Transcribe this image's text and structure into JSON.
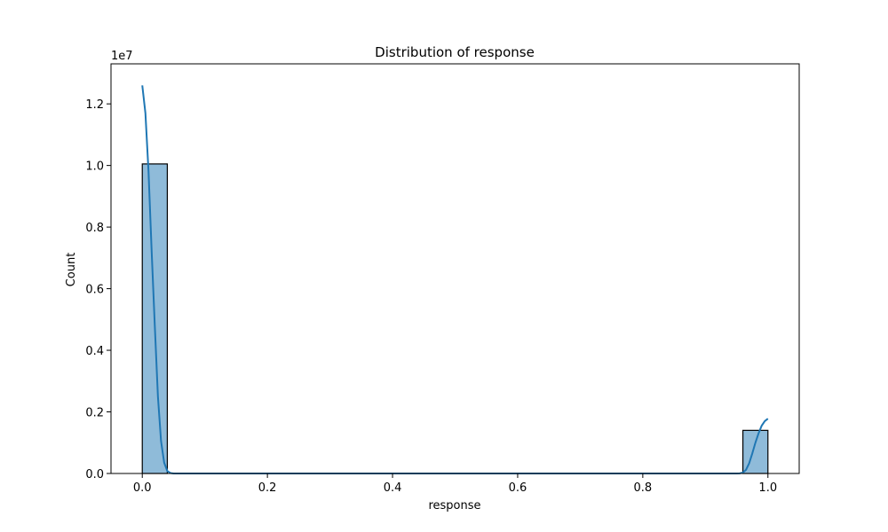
{
  "chart_data": {
    "type": "bar",
    "title": "Distribution of response",
    "xlabel": "response",
    "ylabel": "Count",
    "y_offset_label": "1e7",
    "xlim": [
      -0.05,
      1.05
    ],
    "ylim": [
      0,
      13300000
    ],
    "x_ticks": [
      0.0,
      0.2,
      0.4,
      0.6,
      0.8,
      1.0
    ],
    "x_tick_labels": [
      "0.0",
      "0.2",
      "0.4",
      "0.6",
      "0.8",
      "1.0"
    ],
    "y_ticks": [
      0,
      2000000,
      4000000,
      6000000,
      8000000,
      10000000,
      12000000
    ],
    "y_tick_labels": [
      "0.0",
      "0.2",
      "0.4",
      "0.6",
      "0.8",
      "1.0",
      "1.2"
    ],
    "grid": false,
    "bins": [
      {
        "x0": 0.0,
        "x1": 0.04,
        "count": 10050000
      },
      {
        "x0": 0.96,
        "x1": 1.0,
        "count": 1400000
      }
    ],
    "kde": {
      "x": [
        0.0,
        0.005,
        0.01,
        0.015,
        0.02,
        0.025,
        0.03,
        0.035,
        0.04,
        0.045,
        0.05,
        0.1,
        0.2,
        0.3,
        0.4,
        0.5,
        0.6,
        0.7,
        0.8,
        0.9,
        0.95,
        0.955,
        0.96,
        0.965,
        0.97,
        0.975,
        0.98,
        0.985,
        0.99,
        0.995,
        1.0
      ],
      "y": [
        12600000,
        11700000,
        9800000,
        7200000,
        4800000,
        2500000,
        1050000,
        350000,
        80000,
        15000,
        0,
        0,
        0,
        0,
        0,
        0,
        0,
        0,
        0,
        0,
        0,
        3000,
        30000,
        120000,
        330000,
        650000,
        1000000,
        1300000,
        1550000,
        1700000,
        1780000
      ]
    },
    "colors": {
      "bar_fill": "#1f77b4",
      "bar_fill_opacity": 0.5,
      "bar_edge": "#000000",
      "kde_line": "#1f77b4"
    }
  }
}
